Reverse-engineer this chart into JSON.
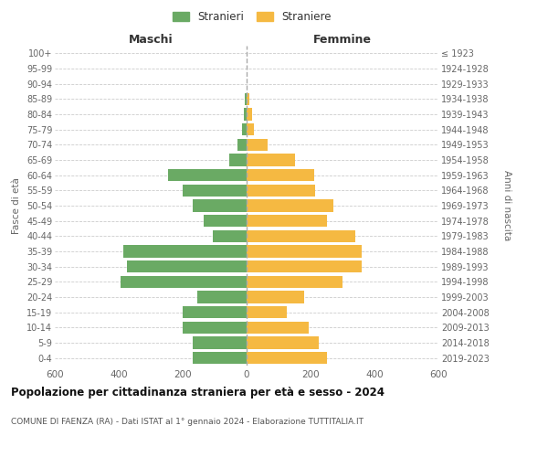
{
  "age_groups": [
    "100+",
    "95-99",
    "90-94",
    "85-89",
    "80-84",
    "75-79",
    "70-74",
    "65-69",
    "60-64",
    "55-59",
    "50-54",
    "45-49",
    "40-44",
    "35-39",
    "30-34",
    "25-29",
    "20-24",
    "15-19",
    "10-14",
    "5-9",
    "0-4"
  ],
  "birth_years": [
    "≤ 1923",
    "1924-1928",
    "1929-1933",
    "1934-1938",
    "1939-1943",
    "1944-1948",
    "1949-1953",
    "1954-1958",
    "1959-1963",
    "1964-1968",
    "1969-1973",
    "1974-1978",
    "1979-1983",
    "1984-1988",
    "1989-1993",
    "1994-1998",
    "1999-2003",
    "2004-2008",
    "2009-2013",
    "2014-2018",
    "2019-2023"
  ],
  "males": [
    0,
    0,
    0,
    5,
    10,
    15,
    30,
    55,
    245,
    200,
    170,
    135,
    105,
    385,
    375,
    395,
    155,
    200,
    200,
    170,
    170
  ],
  "females": [
    0,
    0,
    0,
    8,
    18,
    22,
    65,
    150,
    210,
    215,
    270,
    250,
    340,
    360,
    360,
    300,
    180,
    125,
    195,
    225,
    250
  ],
  "male_color": "#6aaa64",
  "female_color": "#f5b942",
  "title": "Popolazione per cittadinanza straniera per età e sesso - 2024",
  "subtitle": "COMUNE DI FAENZA (RA) - Dati ISTAT al 1° gennaio 2024 - Elaborazione TUTTITALIA.IT",
  "xlabel_left": "Maschi",
  "xlabel_right": "Femmine",
  "ylabel_left": "Fasce di età",
  "ylabel_right": "Anni di nascita",
  "legend_male": "Stranieri",
  "legend_female": "Straniere",
  "xlim": 600,
  "background_color": "#ffffff",
  "grid_color": "#cccccc"
}
